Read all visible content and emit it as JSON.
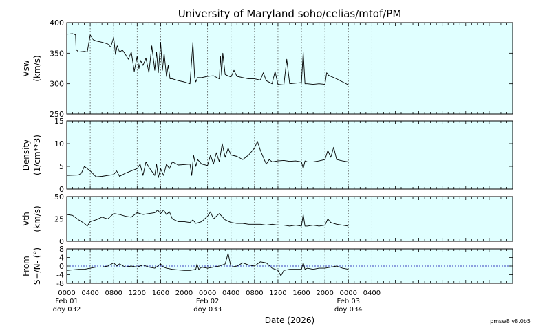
{
  "title": "University of Maryland  soho/celias/mtof/PM",
  "footer": "pmsw8 v8.0b5",
  "colors": {
    "panel_bg": "#e0ffff",
    "trace": "#000000",
    "grid": "#555555",
    "zero_line": "#0000aa"
  },
  "chart_data": {
    "type": "line",
    "title": "University of Maryland  soho/celias/mtof/PM",
    "xlabel": "Date (2026)",
    "x_range_hours": [
      0,
      76
    ],
    "grid": true,
    "x_ticks": [
      {
        "h": 0,
        "time": "0000",
        "date": "Feb 01",
        "doy": "doy 032"
      },
      {
        "h": 4,
        "time": "0400"
      },
      {
        "h": 8,
        "time": "0800"
      },
      {
        "h": 12,
        "time": "1200"
      },
      {
        "h": 16,
        "time": "1600"
      },
      {
        "h": 20,
        "time": "2000"
      },
      {
        "h": 24,
        "time": "0000",
        "date": "Feb 02",
        "doy": "doy 033"
      },
      {
        "h": 28,
        "time": "0400"
      },
      {
        "h": 32,
        "time": "0800"
      },
      {
        "h": 36,
        "time": "1200"
      },
      {
        "h": 40,
        "time": "1600"
      },
      {
        "h": 44,
        "time": "2000"
      },
      {
        "h": 48,
        "time": "0000",
        "date": "Feb 03",
        "doy": "doy 034"
      },
      {
        "h": 52,
        "time": "0400"
      }
    ],
    "panels": [
      {
        "name": "vsw",
        "ylabel": [
          "Vsw",
          "(km/s)"
        ],
        "ylim": [
          250,
          400
        ],
        "yticks": [
          250,
          300,
          350,
          400
        ],
        "x": [
          0,
          1,
          1.5,
          1.6,
          2,
          3,
          3.5,
          4,
          4.5,
          5,
          6,
          7,
          7.5,
          8,
          8.3,
          8.6,
          9,
          9.5,
          10,
          10.5,
          11,
          11.5,
          12,
          12.3,
          12.6,
          13,
          13.5,
          14,
          14.5,
          15,
          15.3,
          15.6,
          16,
          16.3,
          16.6,
          17,
          17.3,
          17.6,
          18,
          19,
          20,
          21,
          21.5,
          21.8,
          22,
          22.3,
          23,
          24,
          25,
          26,
          26.2,
          26.4,
          26.6,
          27,
          28,
          28.5,
          29,
          30,
          31,
          32,
          33,
          33.5,
          34,
          35,
          35.5,
          36,
          37,
          37.5,
          38,
          39,
          40,
          40.3,
          40.6,
          41,
          42,
          43,
          44,
          44.3,
          44.6,
          45,
          46,
          47,
          48
        ],
        "values": [
          381,
          382,
          380,
          356,
          352,
          353,
          352,
          380,
          372,
          370,
          368,
          365,
          360,
          376,
          348,
          362,
          352,
          355,
          348,
          340,
          352,
          320,
          345,
          325,
          338,
          330,
          342,
          318,
          362,
          322,
          352,
          318,
          368,
          322,
          350,
          312,
          330,
          308,
          308,
          305,
          303,
          300,
          368,
          310,
          303,
          310,
          310,
          312,
          313,
          308,
          345,
          314,
          350,
          315,
          311,
          322,
          312,
          310,
          308,
          308,
          306,
          318,
          305,
          300,
          320,
          299,
          298,
          340,
          300,
          301,
          302,
          352,
          300,
          300,
          299,
          300,
          299,
          318,
          314,
          312,
          308,
          303,
          298
        ]
      },
      {
        "name": "density",
        "ylabel": [
          "Density",
          "(1/cm**3)"
        ],
        "ylim": [
          0,
          15
        ],
        "yticks": [
          0,
          5,
          10,
          15
        ],
        "x": [
          0,
          2,
          2.5,
          3,
          3.5,
          4,
          5,
          6,
          7,
          8,
          8.5,
          9,
          10,
          11,
          12,
          12.5,
          13,
          13.5,
          14,
          15,
          15.3,
          15.6,
          16,
          16.5,
          17,
          17.5,
          18,
          19,
          20,
          21,
          21.3,
          21.6,
          22,
          22.3,
          23,
          24,
          24.5,
          25,
          25.5,
          26,
          26.5,
          27,
          27.5,
          28,
          29,
          30,
          31,
          32,
          32.5,
          33,
          33.5,
          34,
          34.5,
          35,
          36,
          37,
          38,
          39,
          40,
          40.3,
          40.6,
          41,
          42,
          43,
          44,
          44.5,
          45,
          45.5,
          46,
          47,
          48
        ],
        "values": [
          3,
          3.1,
          3.5,
          5,
          4.5,
          4,
          2.7,
          2.8,
          3,
          3.2,
          4,
          2.8,
          3.5,
          4,
          4.5,
          5.5,
          3,
          6,
          4.8,
          3,
          5.5,
          2.5,
          4.5,
          3,
          5.5,
          4.5,
          6,
          5.3,
          5.4,
          5.5,
          3,
          7.5,
          5,
          6.5,
          5.5,
          5.2,
          7.5,
          5.5,
          8,
          6,
          10,
          7,
          9,
          7.5,
          7.2,
          6.5,
          7.5,
          9,
          10.5,
          8.5,
          7,
          5.5,
          6.5,
          6,
          6.2,
          6.3,
          6.1,
          6.2,
          6,
          4.5,
          6.2,
          6,
          6,
          6.2,
          6.5,
          8.5,
          7,
          9.2,
          6.5,
          6.2,
          6
        ]
      },
      {
        "name": "vth",
        "ylabel": [
          "Vth",
          "(km/s)"
        ],
        "ylim": [
          0,
          50
        ],
        "yticks": [
          0,
          25,
          50
        ],
        "x": [
          0,
          1,
          2,
          3,
          3.5,
          4,
          5,
          6,
          7,
          8,
          9,
          10,
          11,
          12,
          13,
          14,
          15,
          15.5,
          16,
          16.5,
          17,
          17.5,
          18,
          19,
          20,
          21,
          21.5,
          22,
          23,
          24,
          24.5,
          25,
          26,
          27,
          28,
          29,
          30,
          31,
          32,
          33,
          34,
          35,
          36,
          37,
          38,
          39,
          40,
          40.3,
          40.6,
          41,
          42,
          43,
          44,
          44.5,
          45,
          46,
          47,
          48
        ],
        "values": [
          30,
          29,
          24,
          20,
          17,
          22,
          24,
          27,
          25,
          31,
          30,
          28,
          27,
          32,
          30,
          31,
          32,
          35,
          31,
          35,
          30,
          33,
          25,
          22,
          22,
          21,
          24,
          20,
          22,
          28,
          33,
          25,
          31,
          24,
          21,
          20,
          20,
          19,
          19,
          19,
          18,
          19,
          18,
          18,
          17,
          18,
          17,
          30,
          17,
          17,
          18,
          17,
          18,
          25,
          21,
          19,
          18,
          17
        ]
      },
      {
        "name": "from",
        "ylabel": [
          "From",
          "S+/N- (°)"
        ],
        "ylim": [
          -8,
          8
        ],
        "yticks": [
          -8,
          -4,
          0,
          4,
          8
        ],
        "x": [
          0,
          2,
          3,
          4,
          5,
          6,
          7,
          8,
          8.5,
          9,
          10,
          11,
          12,
          13,
          14,
          15,
          16,
          16.5,
          17,
          18,
          20,
          21,
          22,
          22.2,
          22.5,
          23,
          24,
          25,
          26,
          27,
          27.5,
          28,
          29,
          30,
          31,
          32,
          33,
          34,
          35,
          36,
          36.5,
          37,
          38,
          39,
          40,
          40.3,
          40.6,
          41,
          42,
          43,
          44,
          45,
          46,
          47,
          48
        ],
        "values": [
          -2,
          -1.5,
          -1.5,
          -1,
          -0.5,
          -0.5,
          0,
          1.5,
          0,
          1,
          -0.5,
          0,
          -0.5,
          0.5,
          -0.5,
          -1,
          1,
          -0.5,
          -1,
          -1.5,
          -2,
          -2,
          -1.5,
          1,
          -1.5,
          -0.5,
          -1,
          -0.5,
          0,
          1,
          6,
          -0.5,
          0,
          1.5,
          0.5,
          0,
          2,
          1.5,
          -1,
          -2,
          -4.5,
          -2,
          -1.5,
          -1.5,
          -1.5,
          1.5,
          -1.5,
          -1,
          -1.5,
          -1,
          -1,
          -0.5,
          0,
          -1,
          -1.5
        ]
      }
    ]
  }
}
